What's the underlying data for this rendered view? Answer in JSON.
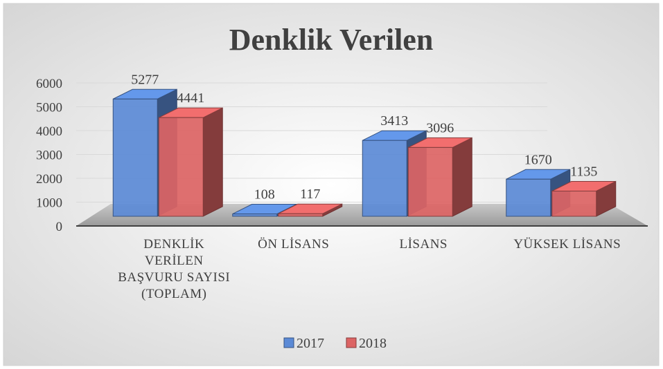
{
  "chart_data": {
    "type": "bar3d",
    "title": "Denklik Verilen",
    "categories": [
      "DENKLİK VERİLEN BAŞVURU SAYISI (TOPLAM)",
      "ÖN LİSANS",
      "LİSANS",
      "YÜKSEK LİSANS"
    ],
    "series": [
      {
        "name": "2017",
        "color": "#5b8ad6",
        "values": [
          5277,
          108,
          3413,
          1670
        ]
      },
      {
        "name": "2018",
        "color": "#dc6464",
        "values": [
          4441,
          117,
          3096,
          1135
        ]
      }
    ],
    "ylim": [
      0,
      6000
    ],
    "yticks": [
      0,
      1000,
      2000,
      3000,
      4000,
      5000,
      6000
    ],
    "grid": true,
    "legend": "bottom"
  }
}
